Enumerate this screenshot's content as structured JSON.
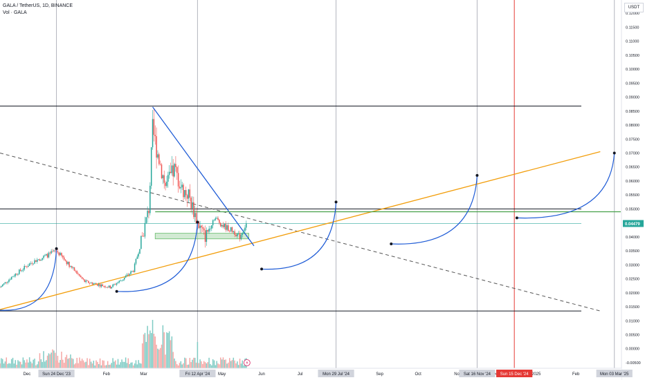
{
  "header": {
    "title": "GALA / TetherUS, 1D, BINANCE",
    "volume_label": "Vol · GALA",
    "currency": "USDT"
  },
  "chart_data": {
    "type": "candlestick",
    "symbol": "GALA / TetherUS",
    "interval": "1D",
    "exchange": "BINANCE",
    "ylim": [
      -0.0055,
      0.124
    ],
    "x_range": [
      "2023-11-10",
      "2025-03-08"
    ],
    "grid": false,
    "y_ticks": [
      "0.12000",
      "0.11500",
      "0.11000",
      "0.10500",
      "0.10000",
      "0.09500",
      "0.09000",
      "0.08500",
      "0.08000",
      "0.07500",
      "0.07000",
      "0.06500",
      "0.06000",
      "0.05500",
      "0.05000",
      "0.04500",
      "0.04000",
      "0.03500",
      "0.03000",
      "0.02500",
      "0.02000",
      "0.01500",
      "0.01000",
      "0.00500",
      "0.00000",
      "-0.00500"
    ],
    "x_ticks": [
      {
        "label": "Dec",
        "date": "2023-12-01"
      },
      {
        "label": "Feb",
        "date": "2024-02-01"
      },
      {
        "label": "Mar",
        "date": "2024-03-01"
      },
      {
        "label": "Ap",
        "date": "2024-04-01"
      },
      {
        "label": "May",
        "date": "2024-05-01"
      },
      {
        "label": "Jun",
        "date": "2024-06-01"
      },
      {
        "label": "Jul",
        "date": "2024-07-01"
      },
      {
        "label": "Sep",
        "date": "2024-09-01"
      },
      {
        "label": "Oct",
        "date": "2024-10-01"
      },
      {
        "label": "Nov",
        "date": "2024-11-01"
      },
      {
        "label": "Dec",
        "date": "2024-12-01"
      },
      {
        "label": "2025",
        "date": "2025-01-01"
      },
      {
        "label": "Feb",
        "date": "2025-02-01"
      }
    ],
    "date_labels": [
      {
        "label": "Sun 24 Dec '23",
        "date": "2023-12-24",
        "style": "normal"
      },
      {
        "label": "Fri 12 Apr '24",
        "date": "2024-04-12",
        "style": "normal"
      },
      {
        "label": "Mon 29 Jul '24",
        "date": "2024-07-29",
        "style": "normal"
      },
      {
        "label": "Sat 16 Nov '24",
        "date": "2024-11-16",
        "style": "normal"
      },
      {
        "label": "Sun 15 Dec '24",
        "date": "2024-12-15",
        "style": "highlight"
      },
      {
        "label": "Mon 03 Mar '25",
        "date": "2025-03-03",
        "style": "normal"
      }
    ],
    "price_key_points": [
      {
        "date": "2023-11-10",
        "price": 0.022
      },
      {
        "date": "2023-11-20",
        "price": 0.026
      },
      {
        "date": "2023-12-05",
        "price": 0.031
      },
      {
        "date": "2023-12-15",
        "price": 0.033
      },
      {
        "date": "2023-12-24",
        "price": 0.035
      },
      {
        "date": "2024-01-03",
        "price": 0.03
      },
      {
        "date": "2024-01-15",
        "price": 0.024
      },
      {
        "date": "2024-01-25",
        "price": 0.023
      },
      {
        "date": "2024-02-04",
        "price": 0.022
      },
      {
        "date": "2024-02-14",
        "price": 0.025
      },
      {
        "date": "2024-02-22",
        "price": 0.028
      },
      {
        "date": "2024-02-29",
        "price": 0.04
      },
      {
        "date": "2024-03-05",
        "price": 0.05
      },
      {
        "date": "2024-03-08",
        "price": 0.078
      },
      {
        "date": "2024-03-12",
        "price": 0.07
      },
      {
        "date": "2024-03-18",
        "price": 0.058
      },
      {
        "date": "2024-03-25",
        "price": 0.064
      },
      {
        "date": "2024-03-31",
        "price": 0.057
      },
      {
        "date": "2024-04-05",
        "price": 0.055
      },
      {
        "date": "2024-04-12",
        "price": 0.045
      },
      {
        "date": "2024-04-18",
        "price": 0.04
      },
      {
        "date": "2024-04-25",
        "price": 0.047
      },
      {
        "date": "2024-05-02",
        "price": 0.044
      },
      {
        "date": "2024-05-10",
        "price": 0.042
      },
      {
        "date": "2024-05-15",
        "price": 0.04
      },
      {
        "date": "2024-05-20",
        "price": 0.0448
      }
    ],
    "last_price": "0.04479",
    "horizontal_lines": [
      {
        "price": 0.0868,
        "color": "#131722"
      },
      {
        "price": 0.05,
        "color": "#131722"
      },
      {
        "price": 0.0135,
        "color": "#131722"
      },
      {
        "price": 0.0448,
        "color": "#26a69a"
      }
    ],
    "support_zone": {
      "from": "2024-03-10",
      "to": "2024-05-22",
      "low": 0.0393,
      "high": 0.0413,
      "color": "#a5d6a7"
    },
    "trendlines": [
      {
        "name": "descending-dashed",
        "start": {
          "date": "2023-11-10",
          "price": 0.07
        },
        "end": {
          "date": "2025-02-20",
          "price": 0.0135
        },
        "color": "#555555",
        "dashed": true
      },
      {
        "name": "rising-support",
        "start": {
          "date": "2023-11-10",
          "price": 0.014
        },
        "end": {
          "date": "2025-02-20",
          "price": 0.0705
        },
        "color": "#f29d0a",
        "dashed": false
      },
      {
        "name": "wedge-resistance",
        "start": {
          "date": "2024-03-08",
          "price": 0.0865
        },
        "end": {
          "date": "2024-05-26",
          "price": 0.0368
        },
        "color": "#1e5bd6",
        "dashed": false
      },
      {
        "name": "resistance-green",
        "start": {
          "date": "2024-03-10",
          "price": 0.049
        },
        "end": {
          "date": "2025-03-08",
          "price": 0.049
        },
        "color": "#43a047",
        "dashed": false
      }
    ],
    "projection_arcs": [
      {
        "start": {
          "date": "2023-11-10",
          "price": 0.0138
        },
        "end": {
          "date": "2023-12-24",
          "price": 0.0358
        },
        "color": "#1e5bd6"
      },
      {
        "start": {
          "date": "2024-02-09",
          "price": 0.0205
        },
        "end": {
          "date": "2024-04-12",
          "price": 0.0453
        },
        "color": "#1e5bd6"
      },
      {
        "start": {
          "date": "2024-06-01",
          "price": 0.0285
        },
        "end": {
          "date": "2024-07-29",
          "price": 0.0525
        },
        "color": "#1e5bd6"
      },
      {
        "start": {
          "date": "2024-09-10",
          "price": 0.0375
        },
        "end": {
          "date": "2024-11-16",
          "price": 0.062
        },
        "color": "#1e5bd6"
      },
      {
        "start": {
          "date": "2024-12-17",
          "price": 0.0468
        },
        "end": {
          "date": "2025-03-03",
          "price": 0.07
        },
        "color": "#1e5bd6"
      }
    ],
    "markers": [
      {
        "date": "2023-12-24",
        "price": 0.0358
      },
      {
        "date": "2024-02-09",
        "price": 0.0205
      },
      {
        "date": "2024-04-12",
        "price": 0.0453
      },
      {
        "date": "2024-06-01",
        "price": 0.0285
      },
      {
        "date": "2024-07-29",
        "price": 0.0525
      },
      {
        "date": "2024-09-10",
        "price": 0.0375
      },
      {
        "date": "2024-11-16",
        "price": 0.062
      },
      {
        "date": "2024-12-17",
        "price": 0.0468
      },
      {
        "date": "2025-03-03",
        "price": 0.07
      }
    ],
    "vertical_lines": [
      {
        "date": "2023-12-24",
        "color": "#b2b5be"
      },
      {
        "date": "2024-04-12",
        "color": "#b2b5be"
      },
      {
        "date": "2024-07-29",
        "color": "#b2b5be"
      },
      {
        "date": "2024-11-16",
        "color": "#b2b5be"
      },
      {
        "date": "2024-12-15",
        "color": "#e53935"
      },
      {
        "date": "2025-03-03",
        "color": "#b2b5be"
      }
    ],
    "colors": {
      "up": "#26a69a",
      "down": "#ef5350",
      "vol_up": "#7fcbc4",
      "vol_down": "#f5a7a5",
      "axis_text": "#131722",
      "highlight_label_bg": "#e53935"
    }
  }
}
